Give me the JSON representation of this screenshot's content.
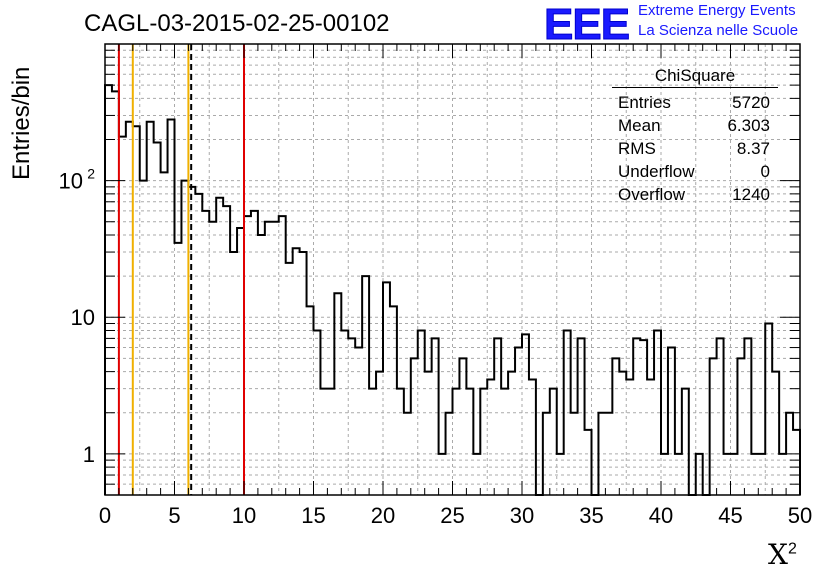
{
  "title": "CAGL-03-2015-02-25-00102",
  "logo": {
    "text": "EEE",
    "line1": "Extreme Energy Events",
    "line2": "La Scienza nelle Scuole"
  },
  "stats": {
    "header": "ChiSquare",
    "rows": [
      {
        "label": "Entries",
        "value": "5720"
      },
      {
        "label": "Mean",
        "value": "6.303"
      },
      {
        "label": "RMS",
        "value": "8.37"
      },
      {
        "label": "Underflow",
        "value": "0"
      },
      {
        "label": "Overflow",
        "value": "1240"
      }
    ]
  },
  "colors": {
    "line": "#000000",
    "red": "#e00000",
    "yellow": "#f0b000",
    "brand": "#1a1aff",
    "grid": "#aaaaaa"
  },
  "chart_data": {
    "type": "step-histogram",
    "xlabel": "X",
    "xlabel_sup": "2",
    "ylabel": "Entries/bin",
    "xlim": [
      0,
      50
    ],
    "ylim": [
      0.5,
      1000
    ],
    "ylog": true,
    "grid": true,
    "bin_width": 0.5,
    "x_ticks": [
      0,
      5,
      10,
      15,
      20,
      25,
      30,
      35,
      40,
      45,
      50
    ],
    "y_ticks": [
      {
        "v": 1,
        "label": "1"
      },
      {
        "v": 10,
        "label": "10"
      },
      {
        "v": 100,
        "label": "10",
        "sup": "2"
      }
    ],
    "values": [
      500,
      450,
      210,
      270,
      250,
      100,
      270,
      190,
      115,
      280,
      35,
      100,
      90,
      80,
      60,
      50,
      75,
      65,
      30,
      45,
      55,
      60,
      40,
      50,
      50,
      55,
      25,
      32,
      30,
      12,
      8,
      3,
      3,
      15,
      8,
      7,
      6,
      20,
      3,
      4,
      18,
      12,
      3,
      2,
      5,
      8,
      4,
      7,
      1,
      2,
      3,
      5,
      3,
      1,
      3,
      3.5,
      7,
      3,
      4,
      6,
      7.5,
      3.5,
      0.5,
      2,
      3,
      1,
      8,
      2,
      7,
      1.5,
      0.5,
      2,
      2,
      5,
      4,
      3.5,
      7,
      6.8,
      3.5,
      8,
      1,
      6,
      1,
      3,
      0.5,
      1,
      0.5,
      5,
      7,
      1,
      1,
      5,
      7,
      1,
      1,
      9,
      4,
      1,
      2,
      1.5
    ],
    "vlines": [
      {
        "x": 1,
        "color": "red",
        "style": "solid"
      },
      {
        "x": 2,
        "color": "yellow",
        "style": "solid"
      },
      {
        "x": 6,
        "color": "yellow",
        "style": "solid"
      },
      {
        "x": 6.2,
        "color": "black",
        "style": "dashed"
      },
      {
        "x": 10,
        "color": "red",
        "style": "solid"
      }
    ]
  }
}
